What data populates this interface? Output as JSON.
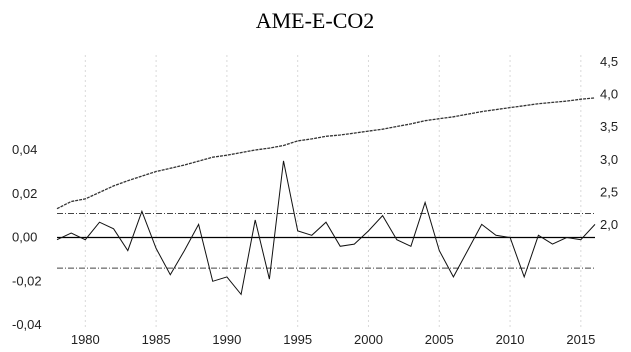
{
  "chart_data": {
    "type": "line",
    "title": "AME-E-CO2",
    "x_ticks": [
      1980,
      1985,
      1990,
      1995,
      2000,
      2005,
      2010,
      2015
    ],
    "x_range": [
      1978,
      2016
    ],
    "left_axis": {
      "ticks": [
        "0,04",
        "0,02",
        "0,00",
        "-0,02",
        "-0,04"
      ],
      "tick_values": [
        0.04,
        0.02,
        0.0,
        -0.02,
        -0.04
      ],
      "range": [
        -0.04,
        0.04
      ]
    },
    "right_axis": {
      "ticks": [
        "4,5",
        "4,0",
        "3,5",
        "3,0",
        "2,5",
        "2,0"
      ],
      "tick_values": [
        4.5,
        4.0,
        3.5,
        3.0,
        2.5,
        2.0
      ],
      "range": [
        1.55,
        4.5
      ]
    },
    "bands": {
      "upper": 0.011,
      "lower": -0.014
    },
    "series": [
      {
        "axis": "right",
        "years": [
          1978,
          1979,
          1980,
          1981,
          1982,
          1983,
          1984,
          1985,
          1986,
          1987,
          1988,
          1989,
          1990,
          1991,
          1992,
          1993,
          1994,
          1995,
          1996,
          1997,
          1998,
          1999,
          2000,
          2001,
          2002,
          2003,
          2004,
          2005,
          2006,
          2007,
          2008,
          2009,
          2010,
          2011,
          2012,
          2013,
          2014,
          2015,
          2016
        ],
        "values": [
          2.25,
          2.36,
          2.4,
          2.5,
          2.6,
          2.68,
          2.75,
          2.82,
          2.87,
          2.92,
          2.98,
          3.04,
          3.07,
          3.11,
          3.15,
          3.18,
          3.22,
          3.29,
          3.32,
          3.36,
          3.38,
          3.41,
          3.44,
          3.47,
          3.51,
          3.55,
          3.6,
          3.63,
          3.66,
          3.7,
          3.74,
          3.77,
          3.8,
          3.83,
          3.86,
          3.88,
          3.9,
          3.93,
          3.95
        ]
      },
      {
        "axis": "left",
        "years": [
          1978,
          1979,
          1980,
          1981,
          1982,
          1983,
          1984,
          1985,
          1986,
          1987,
          1988,
          1989,
          1990,
          1991,
          1992,
          1993,
          1994,
          1995,
          1996,
          1997,
          1998,
          1999,
          2000,
          2001,
          2002,
          2003,
          2004,
          2005,
          2006,
          2007,
          2008,
          2009,
          2010,
          2011,
          2012,
          2013,
          2014,
          2015,
          2016
        ],
        "values": [
          -0.001,
          0.002,
          -0.001,
          0.007,
          0.004,
          -0.006,
          0.012,
          -0.005,
          -0.017,
          -0.006,
          0.006,
          -0.02,
          -0.018,
          -0.026,
          0.008,
          -0.019,
          0.035,
          0.003,
          0.001,
          0.007,
          -0.004,
          -0.003,
          0.003,
          0.01,
          -0.001,
          -0.004,
          0.016,
          -0.006,
          -0.018,
          -0.006,
          0.006,
          0.001,
          0.0,
          -0.018,
          0.001,
          -0.003,
          0.0,
          -0.001,
          0.006
        ]
      }
    ]
  }
}
